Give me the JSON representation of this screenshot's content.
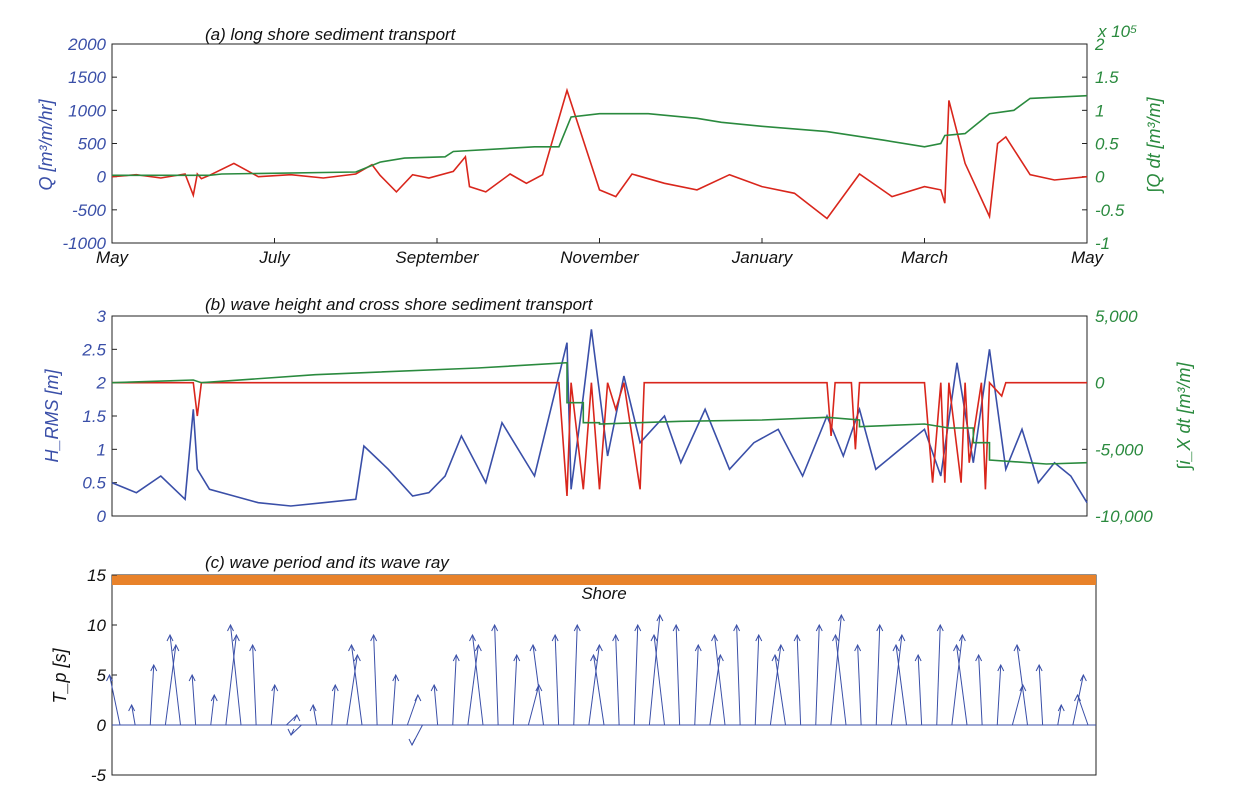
{
  "chart_data": [
    {
      "id": "a",
      "type": "line",
      "title": "(a) long shore sediment transport",
      "xticks": [
        "May",
        "July",
        "September",
        "November",
        "January",
        "March",
        "May"
      ],
      "y_left": {
        "label": "Q [m³/m/hr]",
        "ticks": [
          "2000",
          "1500",
          "1000",
          "500",
          "0",
          "-500",
          "-1000"
        ],
        "ylim": [
          -1000,
          2000
        ],
        "color": "#3a4fa8"
      },
      "y_right": {
        "label": "∫Q dt [m³/m]",
        "ticks": [
          "2",
          "1.5",
          "1",
          "0.5",
          "0",
          "-0.5",
          "-1"
        ],
        "multiplier": "x 10⁵",
        "ylim": [
          -1,
          2
        ],
        "color": "#2a8a3e"
      },
      "series": [
        {
          "color": "#d9261c",
          "axis": "left",
          "x_months": [
            0,
            0.3,
            0.6,
            0.9,
            1.0,
            1.05,
            1.1,
            1.2,
            1.5,
            1.8,
            2.2,
            2.6,
            3.0,
            3.2,
            3.3,
            3.5,
            3.7,
            3.9,
            4.2,
            4.35,
            4.4,
            4.6,
            4.9,
            5.1,
            5.3,
            5.6,
            6.0,
            6.2,
            6.4,
            6.8,
            7.2,
            7.6,
            8.0,
            8.4,
            8.8,
            9.2,
            9.6,
            10.0,
            10.2,
            10.25,
            10.3,
            10.5,
            10.8,
            10.9,
            11.0,
            11.3,
            11.6,
            12.0
          ],
          "values": [
            0,
            30,
            -20,
            40,
            -280,
            40,
            -30,
            20,
            200,
            0,
            30,
            -20,
            40,
            180,
            20,
            -230,
            30,
            -20,
            80,
            300,
            -150,
            -230,
            40,
            -100,
            30,
            1300,
            -200,
            -300,
            40,
            -100,
            -200,
            30,
            -150,
            -250,
            -630,
            40,
            -300,
            -150,
            -200,
            -400,
            1150,
            200,
            -600,
            500,
            600,
            30,
            -50,
            0
          ]
        },
        {
          "color": "#2a8a3e",
          "axis": "right",
          "x_months": [
            0,
            1.2,
            1.35,
            3.0,
            3.3,
            3.6,
            4.1,
            4.2,
            5.2,
            5.5,
            5.65,
            6.0,
            6.6,
            7.2,
            7.5,
            8.0,
            8.8,
            9.5,
            10.0,
            10.2,
            10.25,
            10.5,
            10.8,
            11.1,
            11.3,
            12.0
          ],
          "values": [
            0.02,
            0.02,
            0.04,
            0.07,
            0.22,
            0.28,
            0.3,
            0.38,
            0.45,
            0.45,
            0.9,
            0.95,
            0.95,
            0.88,
            0.82,
            0.76,
            0.68,
            0.55,
            0.45,
            0.5,
            0.62,
            0.65,
            0.95,
            1.0,
            1.18,
            1.22
          ]
        }
      ]
    },
    {
      "id": "b",
      "type": "line",
      "title": "(b) wave height and cross shore sediment transport",
      "y_left": {
        "label": "H_RMS [m]",
        "ticks": [
          "3",
          "2.5",
          "2",
          "1.5",
          "1",
          "0.5",
          "0"
        ],
        "ylim": [
          0,
          3
        ],
        "color": "#3a4fa8"
      },
      "y_right": {
        "label": "∫i_X dt [m³/m]",
        "ticks": [
          "5,000",
          "0",
          "-5,000",
          "-10,000"
        ],
        "ylim": [
          -10000,
          5000
        ],
        "color": "#2a8a3e"
      },
      "series": [
        {
          "color": "#3a4fa8",
          "axis": "left",
          "x_months": [
            0,
            0.3,
            0.6,
            0.9,
            1.0,
            1.05,
            1.2,
            1.5,
            1.8,
            2.2,
            2.6,
            3.0,
            3.1,
            3.4,
            3.7,
            3.9,
            4.1,
            4.3,
            4.6,
            4.8,
            5.2,
            5.6,
            5.65,
            5.8,
            5.9,
            6.1,
            6.3,
            6.5,
            6.8,
            7.0,
            7.3,
            7.6,
            7.9,
            8.2,
            8.5,
            8.8,
            9.0,
            9.2,
            9.4,
            9.7,
            10.0,
            10.2,
            10.4,
            10.6,
            10.8,
            11.0,
            11.2,
            11.4,
            11.6,
            11.8,
            12.0
          ],
          "values": [
            0.5,
            0.35,
            0.6,
            0.25,
            1.6,
            0.7,
            0.4,
            0.3,
            0.2,
            0.15,
            0.2,
            0.25,
            1.05,
            0.7,
            0.3,
            0.35,
            0.6,
            1.2,
            0.5,
            1.4,
            0.6,
            2.6,
            0.4,
            1.8,
            2.8,
            0.9,
            2.1,
            1.1,
            1.5,
            0.8,
            1.6,
            0.7,
            1.1,
            1.3,
            0.6,
            1.5,
            0.9,
            1.6,
            0.7,
            1.0,
            1.3,
            0.6,
            2.3,
            0.8,
            2.5,
            0.7,
            1.3,
            0.5,
            0.8,
            0.6,
            0.2
          ]
        },
        {
          "color": "#d9261c",
          "axis": "right",
          "x_months": [
            0,
            1.0,
            1.05,
            1.1,
            5.5,
            5.6,
            5.65,
            5.8,
            5.9,
            6.0,
            6.1,
            6.2,
            6.3,
            6.5,
            6.55,
            6.6,
            8.8,
            8.85,
            8.9,
            9.1,
            9.15,
            9.2,
            10.0,
            10.1,
            10.2,
            10.25,
            10.3,
            10.45,
            10.5,
            10.55,
            10.7,
            10.75,
            10.8,
            10.95,
            11.0,
            12.0
          ],
          "values": [
            0,
            0,
            -2500,
            0,
            0,
            -8500,
            0,
            -8000,
            0,
            -8000,
            0,
            -2000,
            0,
            -8000,
            0,
            0,
            0,
            -4000,
            0,
            0,
            -5000,
            0,
            0,
            -7500,
            0,
            -7500,
            0,
            -7500,
            0,
            -6000,
            0,
            -8000,
            0,
            -1000,
            0,
            0
          ]
        },
        {
          "color": "#2a8a3e",
          "axis": "right",
          "x_months": [
            0,
            1.0,
            1.1,
            2.5,
            4.5,
            5.6,
            5.6,
            5.8,
            5.8,
            6.0,
            6.0,
            7.0,
            8.0,
            8.8,
            9.2,
            9.2,
            10.0,
            10.3,
            10.6,
            10.6,
            10.8,
            10.8,
            11.5,
            12.0
          ],
          "values": [
            0,
            200,
            0,
            600,
            1100,
            1500,
            -1500,
            -1500,
            -3000,
            -3000,
            -3100,
            -2900,
            -2800,
            -2600,
            -2800,
            -3300,
            -3100,
            -3400,
            -3400,
            -4500,
            -4500,
            -5800,
            -6100,
            -6000
          ]
        }
      ]
    },
    {
      "id": "c",
      "type": "line",
      "title": "(c) wave period and its wave ray",
      "annotation": "Shore",
      "y_left": {
        "label": "T_p [s]",
        "ticks": [
          "15",
          "10",
          "5",
          "0",
          "-5"
        ],
        "ylim": [
          -5,
          15
        ],
        "color": "#111111"
      },
      "series": [
        {
          "color": "#3a4fa8",
          "axis": "left",
          "arrow_peaks": [
            5,
            2,
            6,
            8,
            9,
            5,
            3,
            9,
            10,
            8,
            4,
            1,
            -1,
            2,
            4,
            7,
            8,
            9,
            5,
            3,
            -2,
            4,
            7,
            8,
            9,
            10,
            7,
            4,
            8,
            9,
            10,
            8,
            7,
            9,
            10,
            11,
            9,
            10,
            8,
            7,
            9,
            10,
            9,
            8,
            7,
            9,
            10,
            11,
            9,
            8,
            10,
            9,
            8,
            7,
            10,
            9,
            8,
            7,
            6,
            4,
            8,
            6,
            2,
            5,
            3
          ]
        }
      ]
    }
  ]
}
